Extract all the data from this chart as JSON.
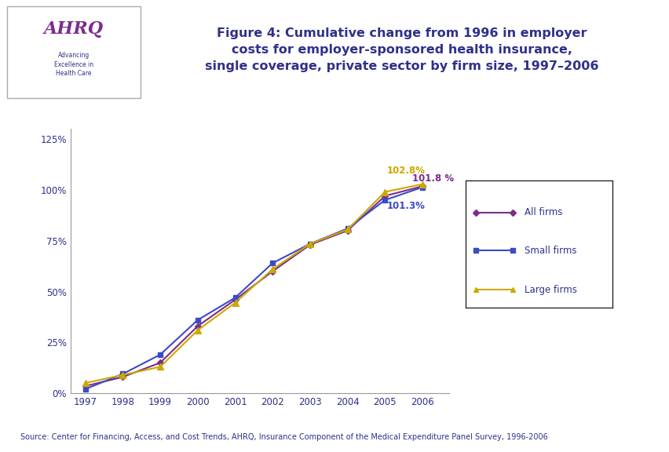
{
  "title_line1": "Figure 4: Cumulative change from 1996 in employer",
  "title_line2": "costs for employer-sponsored health insurance,",
  "title_line3": "single coverage, private sector by firm size, 1997–2006",
  "title_color": "#2E308A",
  "title_fontsize": 11.5,
  "source_text": "Source: Center for Financing, Access, and Cost Trends, AHRQ, Insurance Component of the Medical Expenditure Panel Survey, 1996-2006",
  "years": [
    1997,
    1998,
    1999,
    2000,
    2001,
    2002,
    2003,
    2004,
    2005,
    2006
  ],
  "all_firms": [
    3.5,
    8.0,
    15.0,
    33.0,
    46.0,
    60.0,
    73.0,
    80.0,
    97.0,
    101.8
  ],
  "small_firms": [
    2.0,
    9.5,
    19.0,
    36.0,
    47.0,
    64.0,
    73.5,
    81.0,
    95.0,
    101.3
  ],
  "large_firms": [
    5.0,
    9.0,
    13.0,
    31.0,
    44.5,
    61.0,
    73.5,
    80.5,
    99.0,
    102.8
  ],
  "all_firms_color": "#7B2D8B",
  "small_firms_color": "#3B4BC8",
  "large_firms_color": "#CCA800",
  "bg_color": "#FFFFFF",
  "border_color": "#2E308A",
  "annotation_small_label": "101.3%",
  "annotation_all_label": "101.8 %",
  "annotation_large_label": "102.8%",
  "legend_labels": [
    "All firms",
    "Small firms",
    "Large firms"
  ],
  "ylim": [
    0,
    130
  ],
  "yticks": [
    0,
    25,
    50,
    75,
    100,
    125
  ],
  "ytick_labels": [
    "0%",
    "25%",
    "50%",
    "75%",
    "100%",
    "125%"
  ]
}
